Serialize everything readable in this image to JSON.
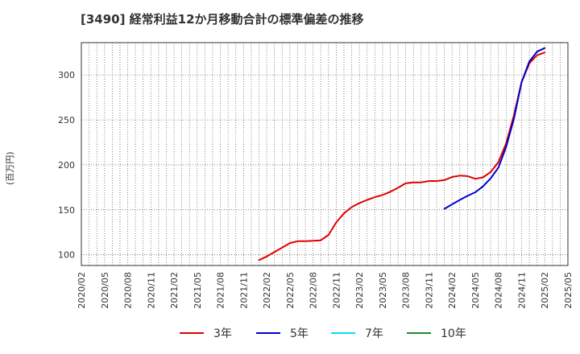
{
  "chart_data": {
    "type": "line",
    "title": "[3490]  経常利益12か月移動合計の標準偏差の推移",
    "ylabel": "(百万円)",
    "xlabel": "",
    "ylim": [
      88,
      336
    ],
    "yticks": [
      100,
      150,
      200,
      250,
      300
    ],
    "x_ticks": [
      "2020/02",
      "2020/05",
      "2020/08",
      "2020/11",
      "2021/02",
      "2021/05",
      "2021/08",
      "2021/11",
      "2022/02",
      "2022/05",
      "2022/08",
      "2022/11",
      "2023/02",
      "2023/05",
      "2023/08",
      "2023/11",
      "2024/02",
      "2024/05",
      "2024/08",
      "2024/11",
      "2025/02",
      "2025/05"
    ],
    "grid": true,
    "legend_position": "bottom",
    "series": [
      {
        "name": "3年",
        "color": "#dd0000",
        "x": [
          "2022/01",
          "2022/02",
          "2022/03",
          "2022/04",
          "2022/05",
          "2022/06",
          "2022/07",
          "2022/08",
          "2022/09",
          "2022/10",
          "2022/11",
          "2022/12",
          "2023/01",
          "2023/02",
          "2023/03",
          "2023/04",
          "2023/05",
          "2023/06",
          "2023/07",
          "2023/08",
          "2023/09",
          "2023/10",
          "2023/11",
          "2023/12",
          "2024/01",
          "2024/02",
          "2024/03",
          "2024/04",
          "2024/05",
          "2024/06",
          "2024/07",
          "2024/08",
          "2024/09",
          "2024/10",
          "2024/11",
          "2024/12",
          "2025/01",
          "2025/02"
        ],
        "values": [
          94,
          98,
          103,
          108,
          113,
          115,
          115,
          115.5,
          116,
          122,
          136,
          146,
          153,
          157.5,
          161,
          164,
          166.5,
          170,
          174.5,
          179.5,
          180.5,
          180.5,
          182,
          182,
          183,
          186.5,
          188,
          187.5,
          184.5,
          186,
          192,
          203,
          224,
          255,
          292,
          313,
          322,
          325
        ]
      },
      {
        "name": "5年",
        "color": "#0000cc",
        "x": [
          "2024/01",
          "2024/02",
          "2024/03",
          "2024/04",
          "2024/05",
          "2024/06",
          "2024/07",
          "2024/08",
          "2024/09",
          "2024/10",
          "2024/11",
          "2024/12",
          "2025/01",
          "2025/02"
        ],
        "values": [
          151,
          156,
          161,
          165.5,
          169.5,
          176,
          185,
          197,
          220,
          251,
          292,
          315,
          326,
          330
        ]
      },
      {
        "name": "7年",
        "color": "#00e5ee",
        "x": [],
        "values": []
      },
      {
        "name": "10年",
        "color": "#228b22",
        "x": [],
        "values": []
      }
    ]
  }
}
